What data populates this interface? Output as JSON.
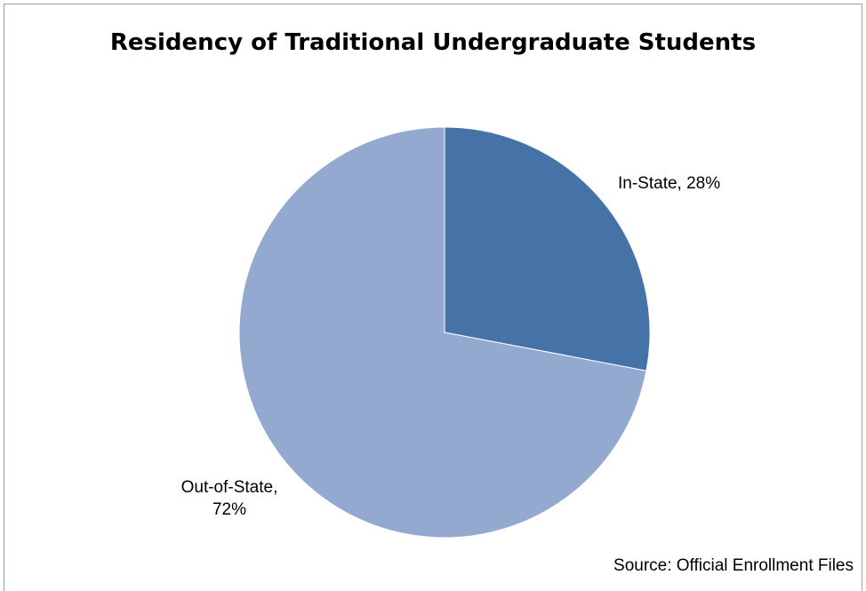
{
  "chart_data": {
    "type": "pie",
    "title": "Residency of Traditional Undergraduate Students",
    "slices": [
      {
        "label": "In-State",
        "value": 28,
        "display": "28%",
        "color": "#4572a7"
      },
      {
        "label": "Out-of-State",
        "value": 72,
        "display": "72%",
        "color": "#93a9d0"
      }
    ],
    "start_angle_deg": 0,
    "direction": "clockwise",
    "legend": "none",
    "source": "Source: Official Enrollment Files"
  },
  "labels": {
    "in_state": "In-State, 28%",
    "out_of_state_line1": "Out-of-State,",
    "out_of_state_line2": "72%"
  }
}
